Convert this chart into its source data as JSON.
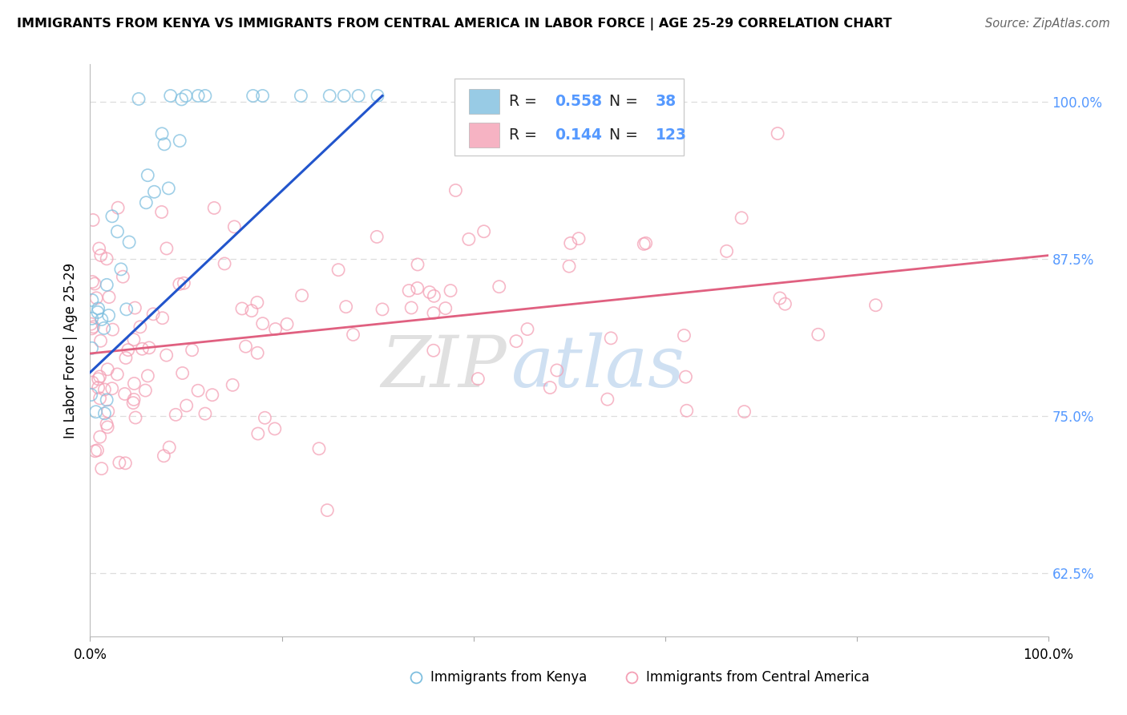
{
  "title": "IMMIGRANTS FROM KENYA VS IMMIGRANTS FROM CENTRAL AMERICA IN LABOR FORCE | AGE 25-29 CORRELATION CHART",
  "source": "Source: ZipAtlas.com",
  "ylabel": "In Labor Force | Age 25-29",
  "watermark_zip": "ZIP",
  "watermark_atlas": "atlas",
  "background_color": "#ffffff",
  "blue_color": "#7fbfdf",
  "pink_color": "#f4a0b5",
  "blue_line_color": "#2255cc",
  "pink_line_color": "#e06080",
  "grid_color": "#dddddd",
  "right_tick_color": "#5599ff",
  "xlim": [
    0.0,
    1.0
  ],
  "ylim": [
    0.575,
    1.03
  ],
  "yticks": [
    0.625,
    0.75,
    0.875,
    1.0
  ],
  "blue_line_x": [
    0.0,
    0.305
  ],
  "blue_line_y": [
    0.785,
    1.005
  ],
  "pink_line_x": [
    0.0,
    1.0
  ],
  "pink_line_y": [
    0.8,
    0.878
  ],
  "R_blue": "0.558",
  "N_blue": "38",
  "R_pink": "0.144",
  "N_pink": "123",
  "legend_label_blue": "Immigrants from Kenya",
  "legend_label_pink": "Immigrants from Central America"
}
